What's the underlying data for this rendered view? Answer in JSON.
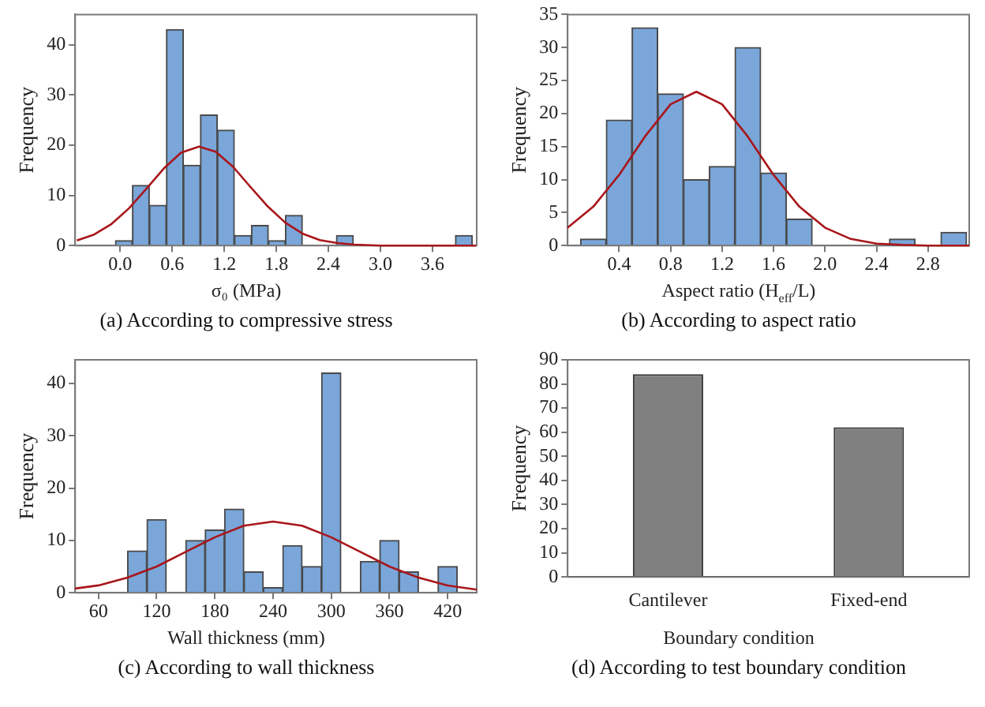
{
  "chart_data": [
    {
      "type": "histogram",
      "title": "(a) According to compressive stress",
      "xlabel": "σ₀ (MPa)",
      "ylabel": "Frequency",
      "series": [
        {
          "type": "histogram",
          "color": "#7aa6d9",
          "bins": [
            -0.056,
            0.14,
            0.336,
            0.532,
            0.728,
            0.924,
            1.12,
            1.316,
            1.512,
            1.708,
            1.904,
            2.1,
            2.296,
            2.492,
            2.688,
            2.884,
            3.08,
            3.276,
            3.472,
            3.668,
            3.864,
            4.06
          ],
          "values": [
            1,
            12,
            8,
            43,
            16,
            26,
            23,
            2,
            4,
            1,
            6,
            0,
            0,
            2,
            0,
            0,
            0,
            0,
            0,
            0,
            2
          ]
        },
        {
          "type": "line",
          "color": "#a8161b",
          "x": [
            -0.5,
            -0.3,
            -0.1,
            0.1,
            0.3,
            0.5,
            0.7,
            0.91,
            1.1,
            1.3,
            1.5,
            1.7,
            1.9,
            2.1,
            2.3,
            2.5,
            2.7,
            3.0,
            3.5,
            4.1
          ],
          "values": [
            1.0,
            2.2,
            4.3,
            7.4,
            11.3,
            15.3,
            18.5,
            19.7,
            18.7,
            15.7,
            11.7,
            7.8,
            4.6,
            2.4,
            1.1,
            0.5,
            0.2,
            0,
            0,
            0
          ]
        }
      ],
      "xlim": [
        -0.52,
        4.11
      ],
      "xticks": [
        {
          "value": 0,
          "label": "0.0"
        },
        0.6,
        1.2,
        1.8,
        2.4,
        {
          "value": 3,
          "label": "3.0"
        },
        3.6
      ],
      "ylim": [
        0,
        46
      ],
      "yticks": [
        0,
        10,
        20,
        30,
        40
      ],
      "grid": false,
      "legend": false,
      "marker": "none"
    },
    {
      "type": "histogram",
      "title": "(b) According to aspect ratio",
      "xlabel": "Aspect ratio (H$_{eff}$/L)",
      "ylabel": "Frequency",
      "series": [
        {
          "type": "histogram",
          "color": "#7aa6d9",
          "bins": [
            0.1,
            0.3,
            0.5,
            0.7,
            0.9,
            1.1,
            1.3,
            1.5,
            1.7,
            1.9,
            2.1,
            2.3,
            2.5,
            2.7,
            2.9,
            3.1
          ],
          "values": [
            1,
            19,
            33,
            23,
            10,
            12,
            30,
            11,
            4,
            0,
            0,
            0,
            1,
            0,
            2
          ]
        },
        {
          "type": "line",
          "color": "#a8161b",
          "x": [
            0,
            0.2,
            0.4,
            0.6,
            0.8,
            1.0,
            1.2,
            1.4,
            1.6,
            1.8,
            2.0,
            2.2,
            2.4,
            2.6,
            2.8,
            3.12
          ],
          "values": [
            2.7,
            5.9,
            10.7,
            16.5,
            21.4,
            23.3,
            21.4,
            16.5,
            10.7,
            5.9,
            2.7,
            1.0,
            0.3,
            0.1,
            0,
            0
          ]
        }
      ],
      "xlim": [
        0,
        3.12
      ],
      "xticks": [
        0.4,
        0.8,
        1.2,
        1.6,
        {
          "value": 2,
          "label": "2.0"
        },
        2.4,
        2.8
      ],
      "ylim": [
        0,
        35
      ],
      "yticks": [
        0,
        5,
        10,
        15,
        20,
        25,
        30,
        35
      ],
      "grid": false,
      "legend": false,
      "marker": "none"
    },
    {
      "type": "histogram",
      "title": "(c) According to wall thickness",
      "xlabel": "Wall thickness (mm)",
      "ylabel": "Frequency",
      "series": [
        {
          "type": "histogram",
          "color": "#7aa6d9",
          "bins": [
            90,
            110,
            130,
            150,
            170,
            190,
            210,
            230,
            250,
            270,
            290,
            310,
            330,
            350,
            370,
            390,
            410,
            430
          ],
          "values": [
            8,
            14,
            0,
            10,
            12,
            16,
            4,
            1,
            9,
            5,
            42,
            0,
            6,
            10,
            4,
            0,
            5
          ]
        },
        {
          "type": "line",
          "color": "#a8161b",
          "x": [
            36,
            60,
            90,
            120,
            150,
            180,
            210,
            240,
            270,
            300,
            330,
            360,
            390,
            420,
            450
          ],
          "values": [
            0.8,
            1.4,
            2.9,
            5.0,
            7.8,
            10.6,
            12.8,
            13.6,
            12.8,
            10.6,
            7.8,
            5.0,
            2.9,
            1.4,
            0.6
          ]
        }
      ],
      "xlim": [
        36,
        450
      ],
      "xticks": [
        60,
        120,
        180,
        240,
        300,
        360,
        420
      ],
      "ylim": [
        0,
        44.5
      ],
      "yticks": [
        0,
        10,
        20,
        30,
        40
      ],
      "grid": false,
      "legend": false,
      "marker": "none"
    },
    {
      "type": "bar",
      "title": "(d) According to test boundary condition",
      "xlabel": "Boundary condition",
      "ylabel": "Frequency",
      "categories": [
        "Cantilever",
        "Fixed-end"
      ],
      "values": [
        84,
        62
      ],
      "color": "#808080",
      "ylim": [
        0,
        90
      ],
      "yticks": [
        0,
        10,
        20,
        30,
        40,
        50,
        60,
        70,
        80,
        90
      ],
      "grid": false,
      "legend": false
    }
  ]
}
